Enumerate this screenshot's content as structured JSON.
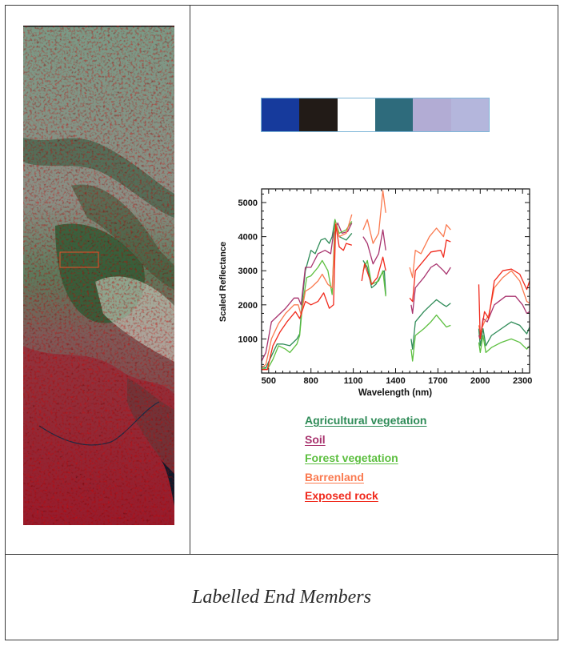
{
  "figure": {
    "caption": "Labelled End Members",
    "satellite_image": {
      "description": "False-color hyperspectral satellite scene",
      "roi_box_color": "#e8502a"
    },
    "color_swatches": [
      {
        "name": "swatch-1",
        "color": "#163a9c"
      },
      {
        "name": "swatch-2",
        "color": "#221b17"
      },
      {
        "name": "swatch-3",
        "color": "#ffffff"
      },
      {
        "name": "swatch-4",
        "color": "#2e6b7c"
      },
      {
        "name": "swatch-5",
        "color": "#b2acd4"
      },
      {
        "name": "swatch-6",
        "color": "#b4b6dc"
      }
    ],
    "legend": [
      {
        "label": "Agricultural vegetation",
        "color": "#2e8b57"
      },
      {
        "label": "Soil",
        "color": "#a8336e"
      },
      {
        "label": "Forest vegetation",
        "color": "#5cbf3f"
      },
      {
        "label": "Barrenland",
        "color": "#fa7a50"
      },
      {
        "label": "Exposed rock",
        "color": "#f0291c"
      }
    ]
  },
  "chart_data": {
    "type": "line",
    "title": "",
    "xlabel": "Wavelength (nm)",
    "ylabel": "Scaled Reflectance",
    "xlim": [
      450,
      2350
    ],
    "ylim": [
      0,
      5400
    ],
    "x_ticks": [
      500,
      800,
      1100,
      1400,
      1700,
      2000,
      2300
    ],
    "y_ticks": [
      1000,
      2000,
      3000,
      4000,
      5000
    ],
    "grid": false,
    "legend_position": "below",
    "gaps_nm": [
      [
        1100,
        1170
      ],
      [
        1330,
        1500
      ],
      [
        1790,
        1980
      ]
    ],
    "series": [
      {
        "name": "Agricultural vegetation",
        "color": "#2e8b57",
        "segments": [
          [
            [
              450,
              200
            ],
            [
              480,
              150
            ],
            [
              520,
              500
            ],
            [
              560,
              850
            ],
            [
              600,
              850
            ],
            [
              650,
              800
            ],
            [
              700,
              1000
            ],
            [
              720,
              1150
            ],
            [
              740,
              2200
            ],
            [
              760,
              3000
            ],
            [
              800,
              3600
            ],
            [
              830,
              3500
            ],
            [
              870,
              3900
            ],
            [
              900,
              3950
            ],
            [
              930,
              3800
            ],
            [
              950,
              4000
            ],
            [
              970,
              4500
            ],
            [
              1000,
              4000
            ],
            [
              1050,
              3900
            ],
            [
              1090,
              4100
            ]
          ],
          [
            [
              1170,
              3300
            ],
            [
              1200,
              3100
            ],
            [
              1230,
              2500
            ],
            [
              1260,
              2600
            ],
            [
              1300,
              2900
            ],
            [
              1320,
              3000
            ],
            [
              1330,
              2300
            ]
          ],
          [
            [
              1510,
              1000
            ],
            [
              1520,
              700
            ],
            [
              1540,
              1500
            ],
            [
              1600,
              1800
            ],
            [
              1650,
              2000
            ],
            [
              1690,
              2150
            ],
            [
              1740,
              2000
            ],
            [
              1760,
              1950
            ],
            [
              1790,
              2050
            ]
          ],
          [
            [
              1990,
              1300
            ],
            [
              2000,
              800
            ],
            [
              2020,
              1300
            ],
            [
              2040,
              800
            ],
            [
              2080,
              1100
            ],
            [
              2150,
              1300
            ],
            [
              2220,
              1500
            ],
            [
              2280,
              1400
            ],
            [
              2330,
              1150
            ],
            [
              2350,
              1350
            ]
          ]
        ]
      },
      {
        "name": "Soil",
        "color": "#a8336e",
        "segments": [
          [
            [
              450,
              350
            ],
            [
              480,
              600
            ],
            [
              520,
              1500
            ],
            [
              570,
              1700
            ],
            [
              620,
              1900
            ],
            [
              680,
              2200
            ],
            [
              710,
              2200
            ],
            [
              730,
              2000
            ],
            [
              760,
              3100
            ],
            [
              800,
              3100
            ],
            [
              850,
              3500
            ],
            [
              900,
              3600
            ],
            [
              940,
              3500
            ],
            [
              960,
              4100
            ],
            [
              990,
              4400
            ],
            [
              1020,
              4100
            ],
            [
              1060,
              4150
            ],
            [
              1090,
              4400
            ]
          ],
          [
            [
              1170,
              4000
            ],
            [
              1200,
              3800
            ],
            [
              1240,
              3200
            ],
            [
              1280,
              3500
            ],
            [
              1310,
              4200
            ],
            [
              1330,
              3600
            ]
          ],
          [
            [
              1510,
              2000
            ],
            [
              1520,
              1750
            ],
            [
              1540,
              2500
            ],
            [
              1600,
              2800
            ],
            [
              1650,
              3100
            ],
            [
              1690,
              3200
            ],
            [
              1740,
              3000
            ],
            [
              1760,
              2900
            ],
            [
              1790,
              3100
            ]
          ],
          [
            [
              1990,
              1100
            ],
            [
              2000,
              1000
            ],
            [
              2020,
              1600
            ],
            [
              2050,
              1500
            ],
            [
              2100,
              2000
            ],
            [
              2180,
              2250
            ],
            [
              2250,
              2250
            ],
            [
              2300,
              2000
            ],
            [
              2330,
              1750
            ],
            [
              2350,
              1800
            ]
          ]
        ]
      },
      {
        "name": "Forest vegetation",
        "color": "#5cbf3f",
        "segments": [
          [
            [
              450,
              150
            ],
            [
              490,
              100
            ],
            [
              530,
              400
            ],
            [
              570,
              800
            ],
            [
              620,
              700
            ],
            [
              650,
              600
            ],
            [
              700,
              850
            ],
            [
              720,
              1100
            ],
            [
              740,
              2000
            ],
            [
              770,
              2800
            ],
            [
              800,
              2850
            ],
            [
              850,
              3100
            ],
            [
              880,
              3300
            ],
            [
              920,
              3000
            ],
            [
              950,
              2300
            ],
            [
              970,
              4500
            ],
            [
              1000,
              4100
            ],
            [
              1050,
              4200
            ],
            [
              1090,
              4450
            ]
          ],
          [
            [
              1170,
              3000
            ],
            [
              1200,
              3300
            ],
            [
              1230,
              2600
            ],
            [
              1280,
              2700
            ],
            [
              1310,
              3000
            ],
            [
              1330,
              2250
            ]
          ],
          [
            [
              1510,
              700
            ],
            [
              1520,
              350
            ],
            [
              1540,
              1100
            ],
            [
              1600,
              1300
            ],
            [
              1650,
              1500
            ],
            [
              1690,
              1700
            ],
            [
              1740,
              1450
            ],
            [
              1760,
              1350
            ],
            [
              1790,
              1400
            ]
          ],
          [
            [
              1990,
              900
            ],
            [
              2000,
              600
            ],
            [
              2020,
              1100
            ],
            [
              2040,
              600
            ],
            [
              2080,
              750
            ],
            [
              2150,
              900
            ],
            [
              2220,
              1000
            ],
            [
              2280,
              900
            ],
            [
              2330,
              700
            ],
            [
              2350,
              800
            ]
          ]
        ]
      },
      {
        "name": "Barrenland",
        "color": "#fa7a50",
        "segments": [
          [
            [
              450,
              150
            ],
            [
              480,
              250
            ],
            [
              520,
              1000
            ],
            [
              570,
              1450
            ],
            [
              620,
              1750
            ],
            [
              680,
              2000
            ],
            [
              710,
              2000
            ],
            [
              730,
              1700
            ],
            [
              760,
              2400
            ],
            [
              800,
              2500
            ],
            [
              850,
              2700
            ],
            [
              880,
              2900
            ],
            [
              920,
              2600
            ],
            [
              950,
              2500
            ],
            [
              975,
              4400
            ],
            [
              1000,
              4000
            ],
            [
              1050,
              4100
            ],
            [
              1090,
              4650
            ]
          ],
          [
            [
              1170,
              4200
            ],
            [
              1200,
              4500
            ],
            [
              1240,
              3800
            ],
            [
              1280,
              4100
            ],
            [
              1310,
              5350
            ],
            [
              1330,
              4700
            ]
          ],
          [
            [
              1500,
              3100
            ],
            [
              1520,
              2800
            ],
            [
              1540,
              3600
            ],
            [
              1580,
              3500
            ],
            [
              1640,
              4000
            ],
            [
              1690,
              4250
            ],
            [
              1740,
              4000
            ],
            [
              1760,
              4350
            ],
            [
              1790,
              4200
            ]
          ],
          [
            [
              1990,
              1400
            ],
            [
              2000,
              1200
            ],
            [
              2030,
              1500
            ],
            [
              2060,
              1700
            ],
            [
              2100,
              2500
            ],
            [
              2160,
              2800
            ],
            [
              2220,
              3000
            ],
            [
              2280,
              2700
            ],
            [
              2330,
              2100
            ],
            [
              2350,
              2050
            ]
          ]
        ]
      },
      {
        "name": "Exposed rock",
        "color": "#f0291c",
        "segments": [
          [
            [
              450,
              100
            ],
            [
              490,
              100
            ],
            [
              530,
              800
            ],
            [
              580,
              1200
            ],
            [
              630,
              1500
            ],
            [
              690,
              1800
            ],
            [
              720,
              1600
            ],
            [
              760,
              2100
            ],
            [
              800,
              2000
            ],
            [
              850,
              2100
            ],
            [
              890,
              2350
            ],
            [
              930,
              1900
            ],
            [
              960,
              2000
            ],
            [
              975,
              4350
            ],
            [
              1000,
              3700
            ],
            [
              1030,
              3600
            ],
            [
              1050,
              3800
            ],
            [
              1090,
              3750
            ]
          ],
          [
            [
              1160,
              2700
            ],
            [
              1180,
              3200
            ],
            [
              1230,
              2600
            ],
            [
              1270,
              2800
            ],
            [
              1310,
              3400
            ],
            [
              1330,
              3000
            ]
          ],
          [
            [
              1500,
              2200
            ],
            [
              1520,
              2100
            ],
            [
              1540,
              3000
            ],
            [
              1600,
              3300
            ],
            [
              1650,
              3550
            ],
            [
              1720,
              3600
            ],
            [
              1740,
              3400
            ],
            [
              1760,
              3900
            ],
            [
              1790,
              3850
            ]
          ],
          [
            [
              1990,
              2600
            ],
            [
              2000,
              1000
            ],
            [
              2030,
              1800
            ],
            [
              2060,
              1600
            ],
            [
              2100,
              2700
            ],
            [
              2160,
              3000
            ],
            [
              2220,
              3050
            ],
            [
              2280,
              2900
            ],
            [
              2330,
              2450
            ],
            [
              2350,
              2700
            ]
          ]
        ]
      }
    ]
  }
}
